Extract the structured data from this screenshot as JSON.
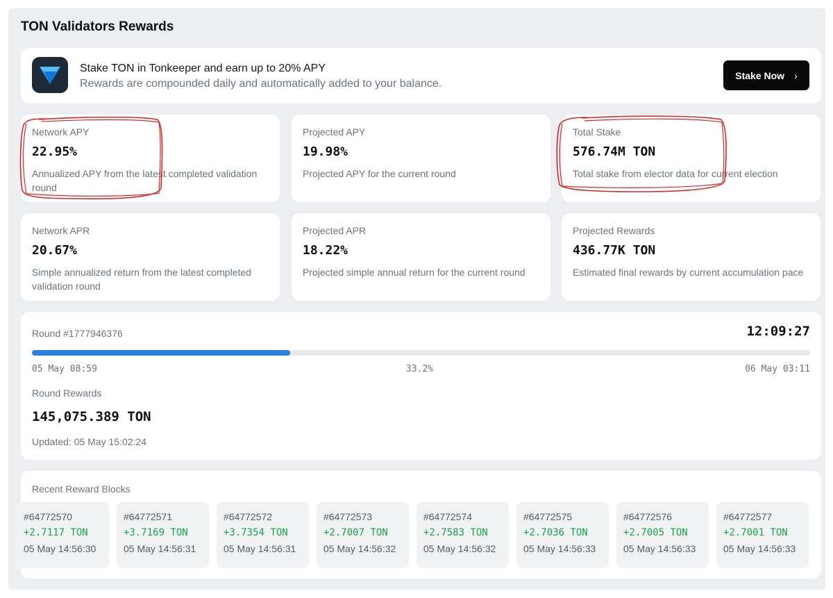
{
  "page": {
    "title": "TON Validators Rewards"
  },
  "banner": {
    "icon": "tonkeeper-diamond-icon",
    "title": "Stake TON in Tonkeeper and earn up to 20% APY",
    "subtitle": "Rewards are compounded daily and automatically added to your balance.",
    "button_label": "Stake Now",
    "button_icon": "chevron-right-icon"
  },
  "stats": [
    {
      "label": "Network APY",
      "value": "22.95%",
      "description": "Annualized APY from the latest completed validation round",
      "highlighted": true
    },
    {
      "label": "Projected APY",
      "value": "19.98%",
      "description": "Projected APY for the current round",
      "highlighted": false
    },
    {
      "label": "Total Stake",
      "value": "576.74M TON",
      "description": "Total stake from elector data for current election",
      "highlighted": true
    },
    {
      "label": "Network APR",
      "value": "20.67%",
      "description": "Simple annualized return from the latest completed validation round",
      "highlighted": false
    },
    {
      "label": "Projected APR",
      "value": "18.22%",
      "description": "Projected simple annual return for the current round",
      "highlighted": false
    },
    {
      "label": "Projected Rewards",
      "value": "436.77K TON",
      "description": "Estimated final rewards by current accumulation pace",
      "highlighted": false
    }
  ],
  "round": {
    "label": "Round #1777946376",
    "time_remaining": "12:09:27",
    "progress_percent": 33.2,
    "progress_text": "33.2%",
    "start": "05 May 08:59",
    "end": "06 May 03:11",
    "rewards_label": "Round Rewards",
    "rewards_value": "145,075.389 TON",
    "updated": "Updated: 05 May 15:02:24"
  },
  "blocks": {
    "title": "Recent Reward Blocks",
    "items": [
      {
        "id": "#64772570",
        "amount": "+2.7117 TON",
        "time": "05 May 14:56:30"
      },
      {
        "id": "#64772571",
        "amount": "+3.7169 TON",
        "time": "05 May 14:56:31"
      },
      {
        "id": "#64772572",
        "amount": "+3.7354 TON",
        "time": "05 May 14:56:31"
      },
      {
        "id": "#64772573",
        "amount": "+2.7007 TON",
        "time": "05 May 14:56:32"
      },
      {
        "id": "#64772574",
        "amount": "+2.7583 TON",
        "time": "05 May 14:56:32"
      },
      {
        "id": "#64772575",
        "amount": "+2.7036 TON",
        "time": "05 May 14:56:33"
      },
      {
        "id": "#64772576",
        "amount": "+2.7005 TON",
        "time": "05 May 14:56:33"
      },
      {
        "id": "#64772577",
        "amount": "+2.7001 TON",
        "time": "05 May 14:56:33"
      }
    ]
  },
  "colors": {
    "accent": "#2f7fe0",
    "positive": "#16a34a",
    "annotation": "#d42a2a",
    "button": "#0a0a0b"
  }
}
